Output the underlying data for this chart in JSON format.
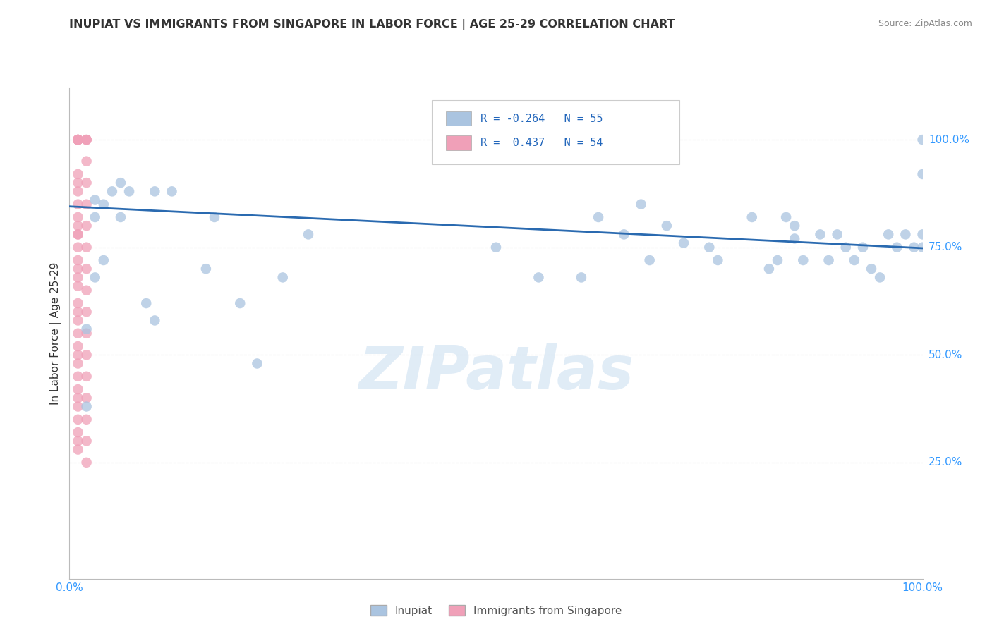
{
  "title": "INUPIAT VS IMMIGRANTS FROM SINGAPORE IN LABOR FORCE | AGE 25-29 CORRELATION CHART",
  "source": "Source: ZipAtlas.com",
  "ylabel": "In Labor Force | Age 25-29",
  "xlim": [
    0.0,
    1.0
  ],
  "ylim": [
    -0.02,
    1.12
  ],
  "R_inupiat": -0.264,
  "N_inupiat": 55,
  "R_singapore": 0.437,
  "N_singapore": 54,
  "inupiat_color": "#aac4e0",
  "singapore_color": "#f0a0b8",
  "trendline_color": "#2a6ab0",
  "trendline_start_x": 0.0,
  "trendline_start_y": 0.845,
  "trendline_end_x": 1.0,
  "trendline_end_y": 0.748,
  "watermark_text": "ZIPatlas",
  "background_color": "#ffffff",
  "grid_color": "#cccccc",
  "ytick_positions": [
    0.25,
    0.5,
    0.75,
    1.0
  ],
  "axis_label_color": "#3399ff",
  "title_color": "#333333",
  "source_color": "#888888",
  "inupiat_x": [
    0.02,
    0.02,
    0.03,
    0.03,
    0.03,
    0.04,
    0.04,
    0.05,
    0.06,
    0.06,
    0.07,
    0.09,
    0.1,
    0.1,
    0.12,
    0.16,
    0.17,
    0.2,
    0.22,
    0.25,
    0.28,
    0.5,
    0.55,
    0.6,
    0.62,
    0.65,
    0.67,
    0.68,
    0.7,
    0.72,
    0.75,
    0.76,
    0.8,
    0.82,
    0.83,
    0.84,
    0.85,
    0.85,
    0.86,
    0.88,
    0.89,
    0.9,
    0.91,
    0.92,
    0.93,
    0.94,
    0.95,
    0.96,
    0.97,
    0.98,
    0.99,
    1.0,
    1.0,
    1.0,
    1.0
  ],
  "inupiat_y": [
    0.56,
    0.38,
    0.86,
    0.82,
    0.68,
    0.85,
    0.72,
    0.88,
    0.9,
    0.82,
    0.88,
    0.62,
    0.88,
    0.58,
    0.88,
    0.7,
    0.82,
    0.62,
    0.48,
    0.68,
    0.78,
    0.75,
    0.68,
    0.68,
    0.82,
    0.78,
    0.85,
    0.72,
    0.8,
    0.76,
    0.75,
    0.72,
    0.82,
    0.7,
    0.72,
    0.82,
    0.77,
    0.8,
    0.72,
    0.78,
    0.72,
    0.78,
    0.75,
    0.72,
    0.75,
    0.7,
    0.68,
    0.78,
    0.75,
    0.78,
    0.75,
    0.78,
    0.75,
    1.0,
    0.92
  ],
  "singapore_x": [
    0.01,
    0.01,
    0.01,
    0.01,
    0.01,
    0.01,
    0.01,
    0.01,
    0.01,
    0.01,
    0.01,
    0.01,
    0.01,
    0.01,
    0.01,
    0.01,
    0.01,
    0.01,
    0.01,
    0.01,
    0.01,
    0.01,
    0.01,
    0.01,
    0.01,
    0.01,
    0.01,
    0.01,
    0.01,
    0.01,
    0.01,
    0.01,
    0.01,
    0.01,
    0.01,
    0.01,
    0.02,
    0.02,
    0.02,
    0.02,
    0.02,
    0.02,
    0.02,
    0.02,
    0.02,
    0.02,
    0.02,
    0.02,
    0.02,
    0.02,
    0.02,
    0.02,
    0.02,
    0.02
  ],
  "singapore_y": [
    1.0,
    1.0,
    1.0,
    1.0,
    1.0,
    1.0,
    1.0,
    1.0,
    0.92,
    0.9,
    0.88,
    0.85,
    0.82,
    0.8,
    0.78,
    0.78,
    0.75,
    0.72,
    0.7,
    0.68,
    0.66,
    0.62,
    0.6,
    0.58,
    0.55,
    0.52,
    0.5,
    0.48,
    0.45,
    0.42,
    0.4,
    0.38,
    0.35,
    0.32,
    0.3,
    0.28,
    1.0,
    1.0,
    1.0,
    0.95,
    0.9,
    0.85,
    0.8,
    0.75,
    0.7,
    0.65,
    0.6,
    0.55,
    0.5,
    0.45,
    0.4,
    0.35,
    0.3,
    0.25
  ]
}
